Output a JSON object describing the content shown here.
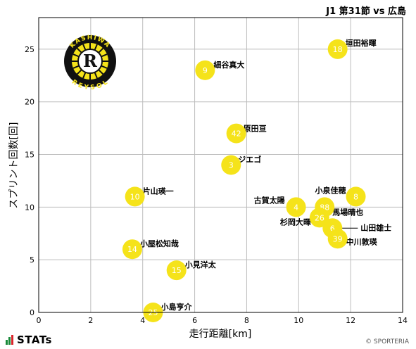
{
  "header": {
    "title": "J1 第31節 vs 広島"
  },
  "footer": {
    "logo_text": "STATs",
    "credit": "© SPORTERIA"
  },
  "logo": {
    "top_text": "KASHIWA",
    "bottom_text": "REYSOL",
    "letter": "R",
    "icon": "kashiwa-reysol-crest-icon"
  },
  "colors": {
    "point": "#f5e31a",
    "grid": "#bdbdbd",
    "text_on_point": "#ffffff"
  },
  "chart_data": {
    "type": "scatter",
    "title": "J1 第31節 vs 広島",
    "xlabel": "走行距離[km]",
    "ylabel": "スプリント回数[回]",
    "xlim": [
      0,
      14
    ],
    "ylim": [
      0,
      28
    ],
    "xticks": [
      0,
      2,
      4,
      6,
      8,
      10,
      12,
      14
    ],
    "yticks": [
      0,
      5,
      10,
      15,
      20,
      25
    ],
    "grid": true,
    "points": [
      {
        "number": "18",
        "name": "垣田裕暉",
        "x": 11.5,
        "y": 25
      },
      {
        "number": "9",
        "name": "細谷真大",
        "x": 6.4,
        "y": 23
      },
      {
        "number": "42",
        "name": "原田亘",
        "x": 7.6,
        "y": 17
      },
      {
        "number": "3",
        "name": "ジエゴ",
        "x": 7.4,
        "y": 14
      },
      {
        "number": "10",
        "name": "片山瑛一",
        "x": 3.7,
        "y": 11
      },
      {
        "number": "8",
        "name": "小泉佳穂",
        "x": 12.2,
        "y": 11
      },
      {
        "number": "4",
        "name": "古賀太陽",
        "x": 9.9,
        "y": 10
      },
      {
        "number": "88",
        "name": "馬場晴也",
        "x": 11.0,
        "y": 10
      },
      {
        "number": "26",
        "name": "杉岡大暉",
        "x": 10.8,
        "y": 9
      },
      {
        "number": "6",
        "name": "山田雄士",
        "x": 11.3,
        "y": 8
      },
      {
        "number": "39",
        "name": "中川敦瑛",
        "x": 11.5,
        "y": 7
      },
      {
        "number": "14",
        "name": "小屋松知哉",
        "x": 3.6,
        "y": 6
      },
      {
        "number": "15",
        "name": "小見洋太",
        "x": 5.3,
        "y": 4
      },
      {
        "number": "25",
        "name": "小島亨介",
        "x": 4.4,
        "y": 0
      }
    ]
  }
}
